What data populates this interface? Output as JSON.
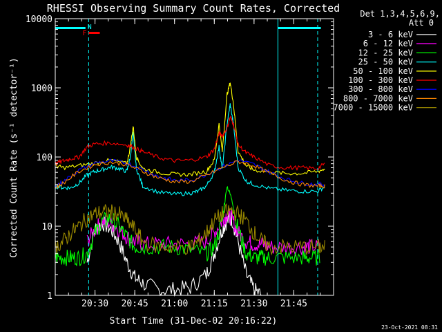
{
  "chart_data": {
    "type": "line",
    "title": "RHESSI Observing Summary Count Rates, Corrected",
    "xlabel": "Start Time (31-Dec-02 20:16:22)",
    "ylabel": "Corrected Count Rate (s⁻¹ detector⁻¹)",
    "yscale": "log",
    "xlim": [
      20.25,
      22.0
    ],
    "ylim": [
      1,
      10000
    ],
    "x_ticks": [
      20.5,
      20.75,
      21.0,
      21.25,
      21.5,
      21.75
    ],
    "x_tick_labels": [
      "20:30",
      "20:45",
      "21:00",
      "21:15",
      "21:30",
      "21:45"
    ],
    "y_ticks": [
      1,
      10,
      100,
      1000,
      10000
    ],
    "y_tick_labels": [
      "1",
      "10",
      "100",
      "1000",
      "10000"
    ],
    "legend_header": [
      "Det 1,3,4,5,6,9,",
      "Att 0"
    ],
    "legend_position": "right",
    "grid": false,
    "series": [
      {
        "name": "3 - 6 keV",
        "color": "#ffffff",
        "x": [
          20.25,
          20.36,
          20.45,
          20.5,
          20.55,
          20.6,
          20.65,
          20.7,
          20.75,
          20.8,
          20.9,
          21.0,
          21.1,
          21.2,
          21.25,
          21.3,
          21.33,
          21.36,
          21.4,
          21.45,
          21.5,
          21.55,
          21.6,
          21.7,
          21.8,
          21.85,
          21.92
        ],
        "y": [
          null,
          null,
          3,
          9,
          11,
          9,
          6,
          3,
          1.8,
          1.5,
          1.2,
          1.2,
          1.3,
          2,
          4,
          9,
          12,
          13,
          6,
          2,
          1.2,
          1,
          null,
          null,
          null,
          null,
          null
        ]
      },
      {
        "name": "6 - 12 keV",
        "color": "#ff00ff",
        "x": [
          20.45,
          20.5,
          20.55,
          20.6,
          20.65,
          20.7,
          20.75,
          20.8,
          20.9,
          21.0,
          21.1,
          21.2,
          21.25,
          21.3,
          21.33,
          21.36,
          21.4,
          21.45,
          21.5,
          21.55,
          21.6,
          21.7,
          21.8,
          21.85,
          21.92
        ],
        "y": [
          6,
          9,
          12,
          11,
          9,
          7,
          6,
          5.5,
          5.5,
          5.5,
          5.5,
          6,
          8,
          12,
          15,
          13,
          8,
          6,
          5.5,
          5.5,
          5,
          5,
          5,
          5,
          5
        ]
      },
      {
        "name": "12 - 25 keV",
        "color": "#00ff00",
        "x": [
          20.25,
          20.3,
          20.35,
          20.4,
          20.45,
          20.5,
          20.55,
          20.6,
          20.65,
          20.7,
          20.75,
          20.8,
          20.9,
          21.0,
          21.1,
          21.2,
          21.25,
          21.3,
          21.33,
          21.36,
          21.4,
          21.45,
          21.5,
          21.55,
          21.6,
          21.7,
          21.8,
          21.85,
          21.92
        ],
        "y": [
          3.5,
          3.5,
          3.5,
          3.5,
          4,
          8,
          12,
          13,
          10,
          7,
          5,
          5,
          5,
          5,
          4.5,
          4,
          5,
          12,
          38,
          25,
          9,
          4,
          3.5,
          3.5,
          3.5,
          3.5,
          3.5,
          3.5,
          3.5
        ]
      },
      {
        "name": "25 - 50 keV",
        "color": "#00ffff",
        "x": [
          20.25,
          20.3,
          20.35,
          20.4,
          20.45,
          20.5,
          20.55,
          20.6,
          20.65,
          20.7,
          20.72,
          20.74,
          20.76,
          20.8,
          20.9,
          21.0,
          21.1,
          21.15,
          21.2,
          21.25,
          21.28,
          21.3,
          21.33,
          21.35,
          21.37,
          21.4,
          21.45,
          21.5,
          21.6,
          21.7,
          21.8,
          21.9,
          21.95
        ],
        "y": [
          38,
          36,
          36,
          42,
          55,
          62,
          66,
          72,
          68,
          62,
          95,
          220,
          68,
          38,
          31,
          29,
          30,
          32,
          38,
          60,
          140,
          65,
          300,
          580,
          300,
          70,
          45,
          40,
          35,
          33,
          32,
          32,
          38
        ]
      },
      {
        "name": "50 - 100 keV",
        "color": "#ffff00",
        "x": [
          20.25,
          20.3,
          20.4,
          20.5,
          20.6,
          20.7,
          20.72,
          20.74,
          20.76,
          20.8,
          20.9,
          21.0,
          21.1,
          21.2,
          21.25,
          21.28,
          21.3,
          21.33,
          21.35,
          21.37,
          21.4,
          21.45,
          21.5,
          21.6,
          21.7,
          21.8,
          21.9,
          21.95
        ],
        "y": [
          75,
          70,
          75,
          82,
          90,
          80,
          130,
          280,
          100,
          68,
          60,
          56,
          56,
          62,
          90,
          300,
          120,
          800,
          1200,
          600,
          120,
          75,
          65,
          60,
          58,
          58,
          62,
          68
        ]
      },
      {
        "name": "100 - 300 keV",
        "color": "#ff0000",
        "x": [
          20.25,
          20.3,
          20.35,
          20.4,
          20.45,
          20.5,
          20.6,
          20.7,
          20.75,
          20.8,
          20.9,
          21.0,
          21.1,
          21.2,
          21.25,
          21.28,
          21.3,
          21.33,
          21.35,
          21.37,
          21.4,
          21.45,
          21.5,
          21.6,
          21.7,
          21.8,
          21.9,
          21.95
        ],
        "y": [
          80,
          88,
          95,
          100,
          140,
          155,
          160,
          150,
          135,
          120,
          98,
          88,
          90,
          100,
          130,
          220,
          200,
          260,
          380,
          300,
          150,
          115,
          100,
          75,
          70,
          70,
          68,
          82
        ]
      },
      {
        "name": "300 - 800 keV",
        "color": "#0000ff",
        "x": [
          20.25,
          20.3,
          20.4,
          20.5,
          20.6,
          20.7,
          20.8,
          20.9,
          21.0,
          21.1,
          21.2,
          21.3,
          21.4,
          21.5,
          21.6,
          21.7,
          21.8,
          21.9,
          21.95
        ],
        "y": [
          38,
          44,
          65,
          82,
          88,
          82,
          66,
          52,
          46,
          46,
          56,
          72,
          90,
          78,
          60,
          48,
          42,
          40,
          40
        ]
      },
      {
        "name": "800 - 7000 keV",
        "color": "#ff8800",
        "x": [
          20.25,
          20.3,
          20.4,
          20.5,
          20.6,
          20.7,
          20.8,
          20.9,
          21.0,
          21.1,
          21.2,
          21.3,
          21.4,
          21.5,
          21.6,
          21.7,
          21.8,
          21.9,
          21.95
        ],
        "y": [
          36,
          42,
          62,
          78,
          84,
          78,
          62,
          50,
          44,
          44,
          54,
          70,
          86,
          75,
          58,
          46,
          40,
          38,
          38
        ]
      },
      {
        "name": "7000 - 15000 keV",
        "color": "#998800",
        "x": [
          20.25,
          20.3,
          20.35,
          20.4,
          20.45,
          20.5,
          20.55,
          20.6,
          20.65,
          20.7,
          20.75,
          20.8,
          20.9,
          21.0,
          21.1,
          21.15,
          21.2,
          21.25,
          21.3,
          21.35,
          21.4,
          21.45,
          21.5,
          21.55,
          21.6,
          21.7,
          21.8,
          21.9,
          21.95
        ],
        "y": [
          5,
          6,
          8,
          10,
          13,
          15,
          16,
          16,
          15,
          12,
          9,
          6,
          5,
          5,
          5,
          6,
          8,
          12,
          15,
          17,
          15,
          12,
          8,
          6,
          5,
          5,
          5,
          5,
          5
        ]
      }
    ],
    "annotations": {
      "flags_top": [
        {
          "label": "N",
          "x_start": 20.25,
          "x_end": 20.44,
          "color": "#00ffff"
        },
        {
          "label": "",
          "x_start": 21.65,
          "x_end": 21.92,
          "color": "#00ffff"
        },
        {
          "label": "F",
          "x_start": 20.46,
          "x_end": 20.53,
          "color": "#ff0000"
        }
      ],
      "solid_vlines": [
        20.25,
        21.65
      ],
      "dashed_vlines": [
        20.46,
        21.9
      ]
    }
  },
  "footer": {
    "timestamp": "23-Oct-2021 08:31"
  }
}
